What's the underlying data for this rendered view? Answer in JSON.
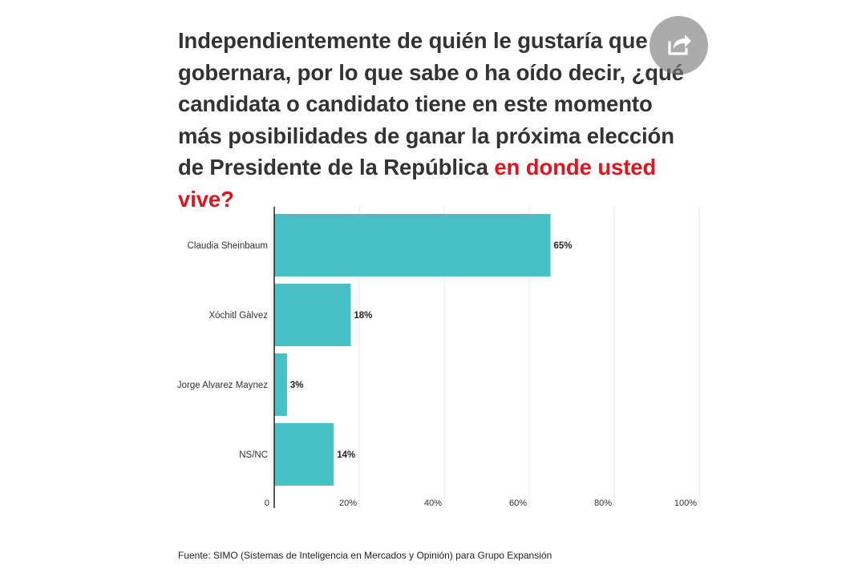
{
  "title": {
    "main": "Independientemente de quién le gustaría que gobernara, por lo que sabe o ha oído decir, ¿qué candidata o candidato tiene en este momento más posibilidades de ganar la próxima elección de Presidente de la República ",
    "highlight": "en donde usted vive?",
    "highlight_color": "#e3141c"
  },
  "share": {
    "icon": "share-icon"
  },
  "chart_data": {
    "type": "bar",
    "orientation": "horizontal",
    "categories": [
      "Claudia Sheinbaum",
      "Xóchitl Gàlvez",
      "Jorge Alvarez Maynez",
      "NS/NC"
    ],
    "values": [
      65,
      18,
      3,
      14
    ],
    "value_labels": [
      "65%",
      "18%",
      "3%",
      "14%"
    ],
    "xlim": [
      0,
      100
    ],
    "xticks": [
      0,
      20,
      40,
      60,
      80,
      100
    ],
    "xtick_labels": [
      "0",
      "20%",
      "40%",
      "60%",
      "80%",
      "100%"
    ],
    "grid": true,
    "bar_color": "#48c1c6"
  },
  "source": "Fuente: SIMO (Sistemas de Inteligencia en Mercados y Opinión) para Grupo Expansión"
}
